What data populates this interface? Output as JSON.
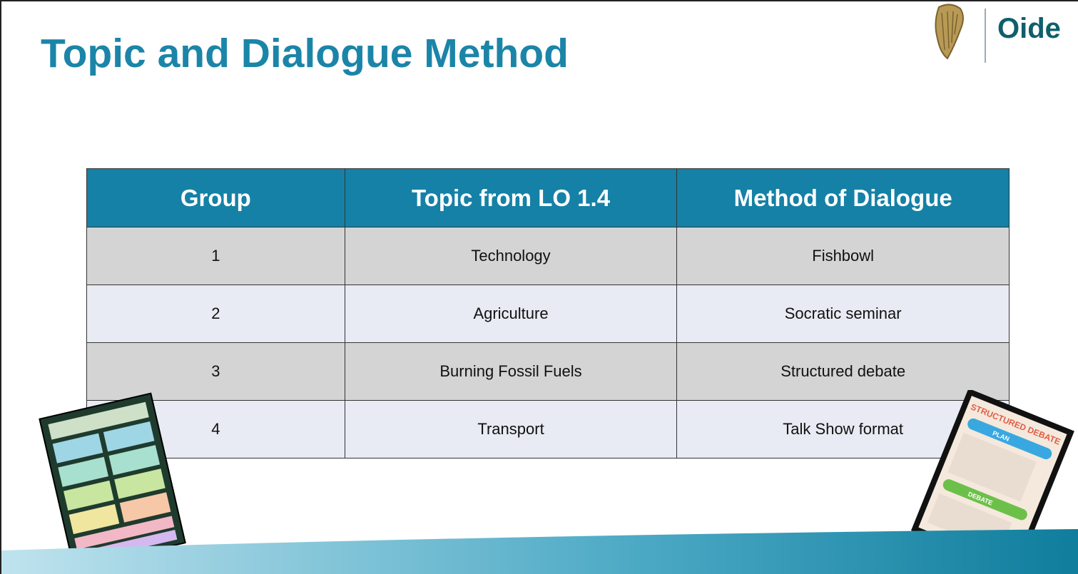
{
  "header": {
    "title": "Topic and Dialogue Method",
    "logo_text": "Oide"
  },
  "table": {
    "columns": [
      "Group",
      "Topic from LO 1.4",
      "Method of Dialogue"
    ],
    "rows": [
      [
        "1",
        "Technology",
        "Fishbowl"
      ],
      [
        "2",
        "Agriculture",
        "Socratic seminar"
      ],
      [
        "3",
        "Burning Fossil Fuels",
        "Structured debate"
      ],
      [
        "4",
        "Transport",
        "Talk Show format"
      ]
    ]
  },
  "thumbnail": {
    "title": "STRUCTURED DEBATE",
    "steps": [
      "PLAN",
      "DEBATE"
    ]
  }
}
